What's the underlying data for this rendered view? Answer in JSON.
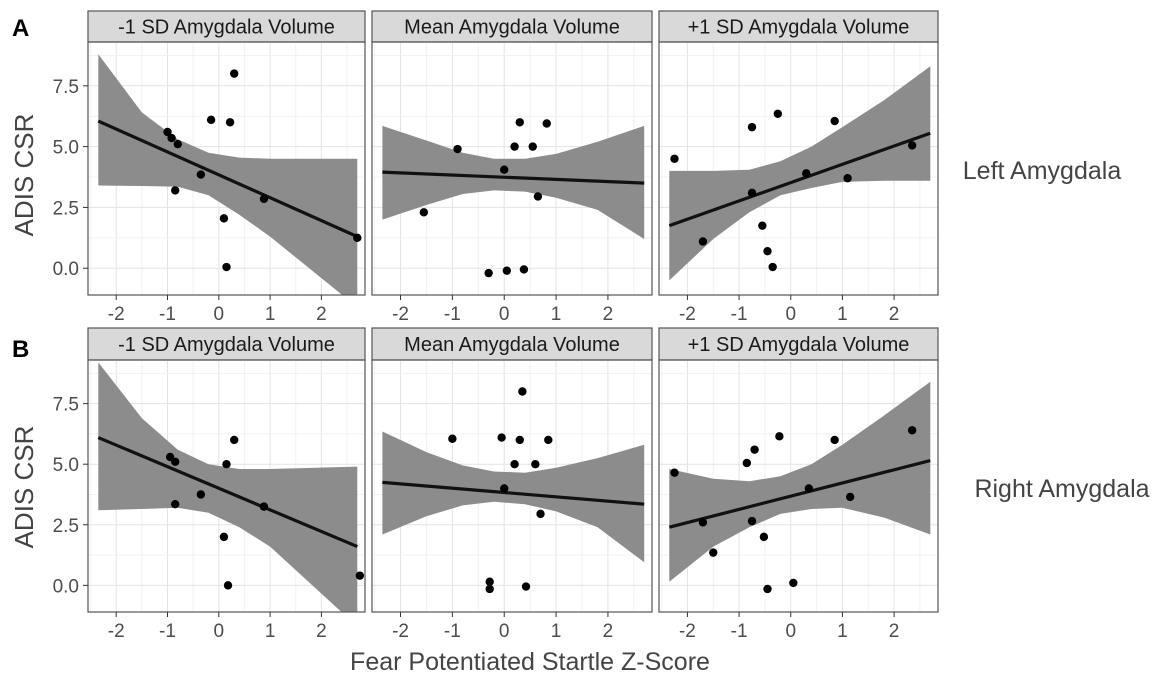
{
  "figure": {
    "xlabel": "Fear Potentiated Startle Z-Score",
    "ylabel": "ADIS CSR"
  },
  "colors": {
    "panel_border": "#555555",
    "strip_fill": "#d9d9d9",
    "grid_major": "#e3e3e3",
    "grid_minor": "#f1f1f1",
    "ribbon": "#8c8c8c",
    "line": "#111111",
    "point": "#000000",
    "text": "#333333",
    "tick_text": "#4d4d4d"
  },
  "chart_data": [
    {
      "type": "scatter",
      "row_label": "A",
      "side_label": "Left Amygdala",
      "ylabel": "ADIS CSR",
      "xlabel": "Fear Potentiated Startle Z-Score",
      "x_ticks": [
        -2,
        -1,
        0,
        1,
        2
      ],
      "y_ticks": [
        0.0,
        2.5,
        5.0,
        7.5
      ],
      "y_tick_labels": [
        "0.0",
        "2.5",
        "5.0",
        "7.5"
      ],
      "xlim": [
        -2.55,
        2.85
      ],
      "ylim": [
        -1.1,
        9.3
      ],
      "grid": true,
      "panels": [
        {
          "title": "-1 SD Amygdala Volume",
          "points": [
            [
              -1.0,
              5.6
            ],
            [
              -0.92,
              5.35
            ],
            [
              -0.8,
              5.1
            ],
            [
              -0.85,
              3.2
            ],
            [
              -0.35,
              3.85
            ],
            [
              -0.15,
              6.1
            ],
            [
              0.22,
              6.0
            ],
            [
              0.3,
              8.0
            ],
            [
              0.1,
              2.05
            ],
            [
              0.15,
              0.05
            ],
            [
              0.88,
              2.85
            ],
            [
              2.7,
              1.25
            ]
          ],
          "fit": [
            [
              -2.35,
              6.05
            ],
            [
              2.7,
              1.3
            ]
          ],
          "band_upper": [
            [
              -2.35,
              8.8
            ],
            [
              -1.5,
              6.4
            ],
            [
              -0.8,
              5.3
            ],
            [
              -0.2,
              4.75
            ],
            [
              0.4,
              4.55
            ],
            [
              1.0,
              4.5
            ],
            [
              2.7,
              4.5
            ]
          ],
          "band_lower": [
            [
              -2.35,
              3.4
            ],
            [
              -1.5,
              3.38
            ],
            [
              -0.8,
              3.35
            ],
            [
              -0.2,
              3.0
            ],
            [
              0.4,
              2.2
            ],
            [
              1.0,
              1.3
            ],
            [
              2.7,
              -1.6
            ]
          ]
        },
        {
          "title": "Mean Amygdala Volume",
          "points": [
            [
              -1.55,
              2.3
            ],
            [
              -0.9,
              4.9
            ],
            [
              0.0,
              4.05
            ],
            [
              0.2,
              5.0
            ],
            [
              0.3,
              6.0
            ],
            [
              0.55,
              5.0
            ],
            [
              0.82,
              5.95
            ],
            [
              0.65,
              2.95
            ],
            [
              -0.3,
              -0.2
            ],
            [
              0.05,
              -0.1
            ],
            [
              0.38,
              -0.05
            ]
          ],
          "fit": [
            [
              -2.35,
              3.95
            ],
            [
              2.7,
              3.5
            ]
          ],
          "band_upper": [
            [
              -2.35,
              5.85
            ],
            [
              -1.5,
              5.25
            ],
            [
              -0.8,
              4.75
            ],
            [
              -0.2,
              4.5
            ],
            [
              0.4,
              4.5
            ],
            [
              1.0,
              4.7
            ],
            [
              1.8,
              5.2
            ],
            [
              2.7,
              5.85
            ]
          ],
          "band_lower": [
            [
              -2.35,
              2.0
            ],
            [
              -1.5,
              2.6
            ],
            [
              -0.8,
              3.05
            ],
            [
              -0.2,
              3.2
            ],
            [
              0.4,
              3.15
            ],
            [
              1.0,
              2.9
            ],
            [
              1.8,
              2.4
            ],
            [
              2.7,
              1.2
            ]
          ]
        },
        {
          "title": "+1 SD Amygdala Volume",
          "points": [
            [
              -2.25,
              4.5
            ],
            [
              -1.7,
              1.1
            ],
            [
              -0.75,
              5.8
            ],
            [
              -0.75,
              3.1
            ],
            [
              -0.55,
              1.75
            ],
            [
              -0.45,
              0.7
            ],
            [
              -0.35,
              0.05
            ],
            [
              -0.25,
              6.35
            ],
            [
              0.3,
              3.9
            ],
            [
              0.85,
              6.05
            ],
            [
              1.1,
              3.7
            ],
            [
              2.35,
              5.05
            ]
          ],
          "fit": [
            [
              -2.35,
              1.75
            ],
            [
              2.7,
              5.55
            ]
          ],
          "band_upper": [
            [
              -2.35,
              4.0
            ],
            [
              -1.5,
              4.0
            ],
            [
              -0.8,
              4.05
            ],
            [
              -0.2,
              4.4
            ],
            [
              0.4,
              5.0
            ],
            [
              1.0,
              5.8
            ],
            [
              1.8,
              6.9
            ],
            [
              2.7,
              8.3
            ]
          ],
          "band_lower": [
            [
              -2.35,
              -0.5
            ],
            [
              -1.5,
              1.2
            ],
            [
              -0.8,
              2.3
            ],
            [
              -0.2,
              3.0
            ],
            [
              0.4,
              3.3
            ],
            [
              1.0,
              3.55
            ],
            [
              1.8,
              3.6
            ],
            [
              2.7,
              3.6
            ]
          ]
        }
      ]
    },
    {
      "type": "scatter",
      "row_label": "B",
      "side_label": "Right Amygdala",
      "ylabel": "ADIS CSR",
      "xlabel": "Fear Potentiated Startle Z-Score",
      "x_ticks": [
        -2,
        -1,
        0,
        1,
        2
      ],
      "x_tick_labels": [
        "-2",
        "-1",
        "0",
        "1",
        "2"
      ],
      "y_ticks": [
        0.0,
        2.5,
        5.0,
        7.5
      ],
      "y_tick_labels": [
        "0.0",
        "2.5",
        "5.0",
        "7.5"
      ],
      "xlim": [
        -2.55,
        2.85
      ],
      "ylim": [
        -1.1,
        9.3
      ],
      "grid": true,
      "panels": [
        {
          "title": "-1 SD Amygdala Volume",
          "points": [
            [
              -0.95,
              5.3
            ],
            [
              -0.85,
              5.1
            ],
            [
              -0.85,
              3.35
            ],
            [
              -0.35,
              3.75
            ],
            [
              0.15,
              5.0
            ],
            [
              0.3,
              6.0
            ],
            [
              0.1,
              2.0
            ],
            [
              0.18,
              0.0
            ],
            [
              0.88,
              3.25
            ],
            [
              2.75,
              0.4
            ]
          ],
          "fit": [
            [
              -2.35,
              6.1
            ],
            [
              2.7,
              1.6
            ]
          ],
          "band_upper": [
            [
              -2.35,
              9.2
            ],
            [
              -1.5,
              6.9
            ],
            [
              -0.8,
              5.6
            ],
            [
              -0.2,
              5.0
            ],
            [
              0.4,
              4.8
            ],
            [
              1.0,
              4.8
            ],
            [
              2.7,
              4.9
            ]
          ],
          "band_lower": [
            [
              -2.35,
              3.1
            ],
            [
              -1.5,
              3.15
            ],
            [
              -0.8,
              3.2
            ],
            [
              -0.2,
              3.0
            ],
            [
              0.4,
              2.4
            ],
            [
              1.0,
              1.6
            ],
            [
              2.7,
              -1.7
            ]
          ]
        },
        {
          "title": "Mean Amygdala Volume",
          "points": [
            [
              -1.0,
              6.05
            ],
            [
              -0.05,
              6.1
            ],
            [
              0.0,
              4.0
            ],
            [
              0.2,
              5.0
            ],
            [
              0.3,
              6.0
            ],
            [
              0.35,
              8.0
            ],
            [
              0.6,
              5.0
            ],
            [
              0.85,
              6.0
            ],
            [
              0.7,
              2.95
            ],
            [
              -0.28,
              0.15
            ],
            [
              -0.28,
              -0.15
            ],
            [
              0.42,
              -0.05
            ]
          ],
          "fit": [
            [
              -2.35,
              4.25
            ],
            [
              2.7,
              3.35
            ]
          ],
          "band_upper": [
            [
              -2.35,
              6.35
            ],
            [
              -1.5,
              5.5
            ],
            [
              -0.8,
              4.95
            ],
            [
              -0.2,
              4.7
            ],
            [
              0.4,
              4.65
            ],
            [
              1.0,
              4.85
            ],
            [
              1.8,
              5.25
            ],
            [
              2.7,
              5.8
            ]
          ],
          "band_lower": [
            [
              -2.35,
              2.1
            ],
            [
              -1.5,
              2.85
            ],
            [
              -0.8,
              3.3
            ],
            [
              -0.2,
              3.45
            ],
            [
              0.4,
              3.35
            ],
            [
              1.0,
              3.05
            ],
            [
              1.8,
              2.4
            ],
            [
              2.7,
              0.95
            ]
          ]
        },
        {
          "title": "+1 SD Amygdala Volume",
          "points": [
            [
              -2.25,
              4.65
            ],
            [
              -1.7,
              2.6
            ],
            [
              -1.5,
              1.35
            ],
            [
              -0.85,
              5.05
            ],
            [
              -0.7,
              5.6
            ],
            [
              -0.75,
              2.65
            ],
            [
              -0.52,
              2.0
            ],
            [
              -0.45,
              -0.15
            ],
            [
              -0.22,
              6.15
            ],
            [
              0.05,
              0.1
            ],
            [
              0.35,
              4.0
            ],
            [
              0.85,
              6.0
            ],
            [
              1.15,
              3.65
            ],
            [
              2.35,
              6.4
            ]
          ],
          "fit": [
            [
              -2.35,
              2.4
            ],
            [
              2.7,
              5.15
            ]
          ],
          "band_upper": [
            [
              -2.35,
              4.8
            ],
            [
              -1.5,
              4.4
            ],
            [
              -0.8,
              4.3
            ],
            [
              -0.2,
              4.5
            ],
            [
              0.4,
              5.0
            ],
            [
              1.0,
              5.8
            ],
            [
              1.8,
              7.0
            ],
            [
              2.7,
              8.4
            ]
          ],
          "band_lower": [
            [
              -2.35,
              0.15
            ],
            [
              -1.5,
              1.6
            ],
            [
              -0.8,
              2.4
            ],
            [
              -0.2,
              2.95
            ],
            [
              0.4,
              3.15
            ],
            [
              1.0,
              3.2
            ],
            [
              1.8,
              2.8
            ],
            [
              2.7,
              2.1
            ]
          ]
        }
      ]
    }
  ]
}
